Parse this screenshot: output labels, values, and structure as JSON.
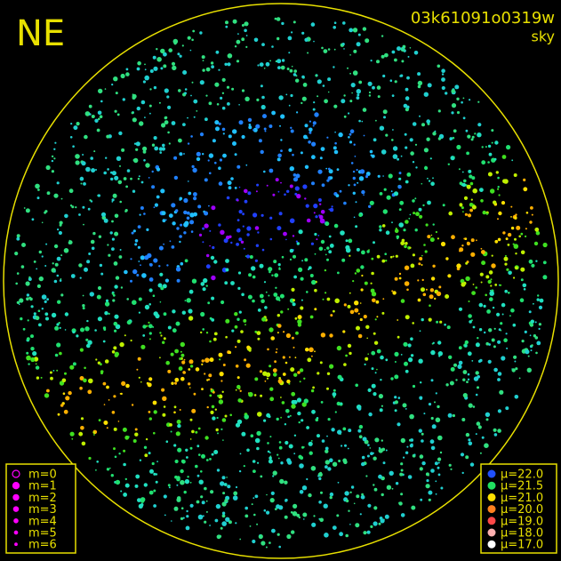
{
  "header": {
    "direction": "NE",
    "frame_id": "03k61091o0319w",
    "mode": "sky"
  },
  "magnitude_legend": {
    "items": [
      "m=0",
      "m=1",
      "m=2",
      "m=3",
      "m=4",
      "m=5",
      "m=6"
    ],
    "color": "#ff00ff"
  },
  "brightness_legend": {
    "items": [
      {
        "label": "μ=22.0",
        "color": "#2050ff"
      },
      {
        "label": "μ=21.5",
        "color": "#20e060"
      },
      {
        "label": "μ=21.0",
        "color": "#ffe000"
      },
      {
        "label": "μ=20.0",
        "color": "#ff8020"
      },
      {
        "label": "μ=19.0",
        "color": "#ff4848"
      },
      {
        "label": "μ=18.0",
        "color": "#ffb0b0"
      },
      {
        "label": "μ=17.0",
        "color": "#ffffff"
      }
    ]
  }
}
